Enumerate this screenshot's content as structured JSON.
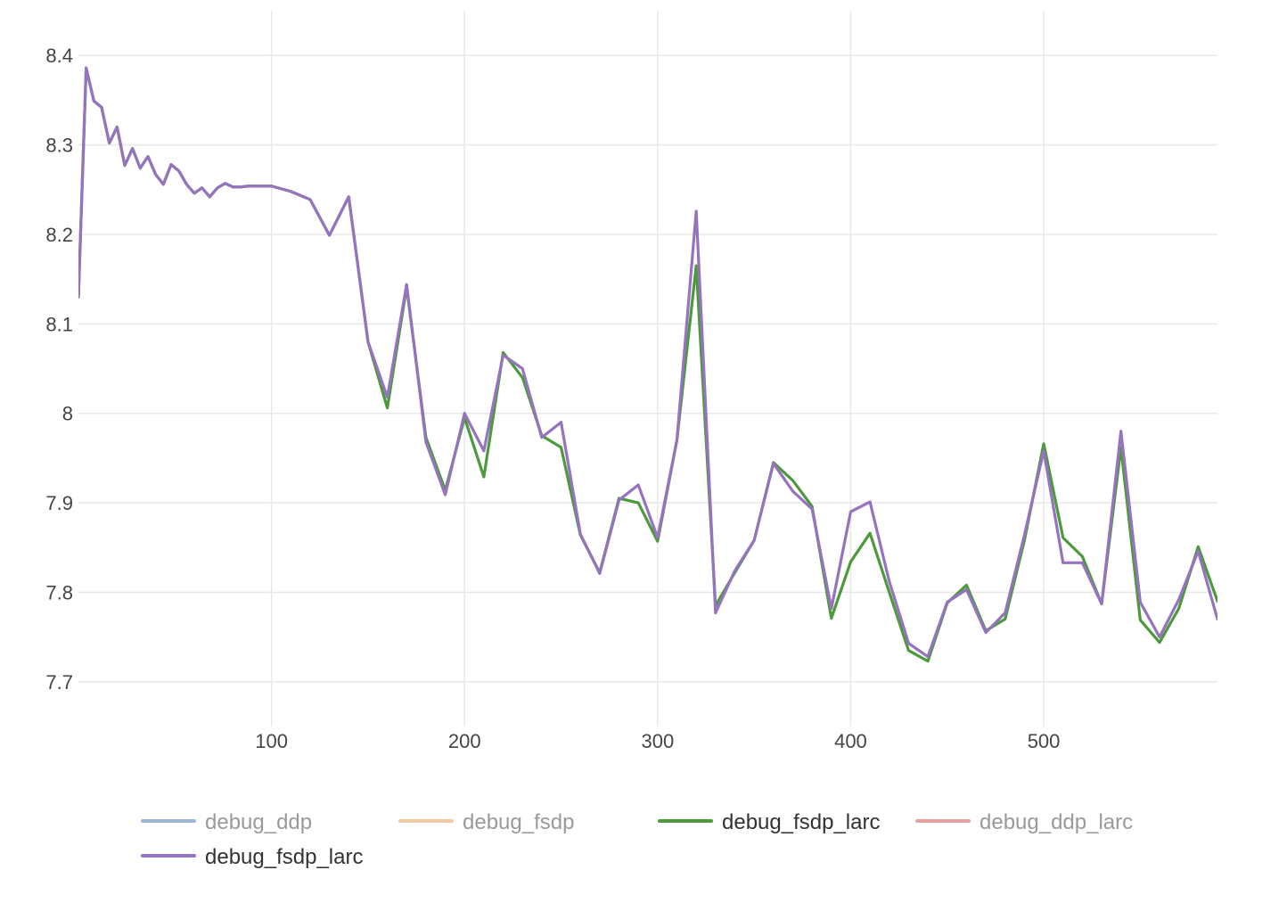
{
  "chart_data": {
    "type": "line",
    "title": "",
    "xlabel": "",
    "ylabel": "",
    "xlim": [
      0,
      590
    ],
    "ylim": [
      7.65,
      8.45
    ],
    "x_ticks": [
      100,
      200,
      300,
      400,
      500
    ],
    "x_tick_labels": [
      "100",
      "200",
      "300",
      "400",
      "500"
    ],
    "y_ticks": [
      7.7,
      7.8,
      7.9,
      8.0,
      8.1,
      8.2,
      8.3,
      8.4
    ],
    "y_tick_labels": [
      "7.7",
      "7.8",
      "7.9",
      "8",
      "8.1",
      "8.2",
      "8.3",
      "8.4"
    ],
    "grid": true,
    "legend_position": "bottom",
    "series": [
      {
        "name": "debug_ddp",
        "color": "#9ab7d6",
        "visible": false,
        "x": [],
        "y": []
      },
      {
        "name": "debug_fsdp",
        "color": "#f3c9a2",
        "visible": false,
        "x": [],
        "y": []
      },
      {
        "name": "debug_fsdp_larc",
        "color": "#4c9a3c",
        "visible": true,
        "x": [
          0,
          4,
          8,
          12,
          16,
          20,
          24,
          28,
          32,
          36,
          40,
          44,
          48,
          52,
          56,
          60,
          64,
          68,
          72,
          76,
          80,
          84,
          88,
          92,
          96,
          100,
          110,
          120,
          130,
          140,
          150,
          160,
          170,
          180,
          190,
          200,
          210,
          220,
          230,
          240,
          250,
          260,
          270,
          280,
          290,
          300,
          310,
          320,
          330,
          340,
          350,
          360,
          370,
          380,
          390,
          400,
          410,
          420,
          430,
          440,
          450,
          460,
          470,
          480,
          490,
          500,
          510,
          520,
          530,
          540,
          550,
          560,
          570,
          580,
          590
        ],
        "y": [
          8.13,
          8.386,
          8.349,
          8.342,
          8.302,
          8.32,
          8.277,
          8.296,
          8.274,
          8.287,
          8.267,
          8.256,
          8.278,
          8.271,
          8.256,
          8.246,
          8.252,
          8.242,
          8.252,
          8.257,
          8.253,
          8.253,
          8.254,
          8.254,
          8.254,
          8.254,
          8.248,
          8.239,
          8.199,
          8.242,
          8.08,
          8.006,
          8.141,
          7.973,
          7.914,
          7.995,
          7.929,
          8.068,
          8.04,
          7.975,
          7.962,
          7.864,
          7.822,
          7.905,
          7.9,
          7.857,
          7.97,
          8.165,
          7.785,
          7.822,
          7.858,
          7.945,
          7.925,
          7.896,
          7.771,
          7.834,
          7.866,
          7.8,
          7.735,
          7.723,
          7.788,
          7.808,
          7.757,
          7.77,
          7.858,
          7.966,
          7.861,
          7.84,
          7.787,
          7.962,
          7.769,
          7.744,
          7.782,
          7.851,
          7.79
        ]
      },
      {
        "name": "debug_ddp_larc",
        "color": "#e6a0a0",
        "visible": false,
        "x": [],
        "y": []
      },
      {
        "name": "debug_fsdp_larc",
        "color": "#9573bf",
        "visible": true,
        "x": [
          0,
          4,
          8,
          12,
          16,
          20,
          24,
          28,
          32,
          36,
          40,
          44,
          48,
          52,
          56,
          60,
          64,
          68,
          72,
          76,
          80,
          84,
          88,
          92,
          96,
          100,
          110,
          120,
          130,
          140,
          150,
          160,
          170,
          180,
          190,
          200,
          210,
          220,
          230,
          240,
          250,
          260,
          270,
          280,
          290,
          300,
          310,
          320,
          330,
          340,
          350,
          360,
          370,
          380,
          390,
          400,
          410,
          420,
          430,
          440,
          450,
          460,
          470,
          480,
          490,
          500,
          510,
          520,
          530,
          540,
          550,
          560,
          570,
          580,
          590
        ],
        "y": [
          8.13,
          8.386,
          8.349,
          8.342,
          8.302,
          8.32,
          8.277,
          8.296,
          8.274,
          8.287,
          8.267,
          8.256,
          8.278,
          8.271,
          8.256,
          8.246,
          8.252,
          8.242,
          8.252,
          8.257,
          8.253,
          8.253,
          8.254,
          8.254,
          8.254,
          8.254,
          8.248,
          8.239,
          8.199,
          8.242,
          8.08,
          8.018,
          8.144,
          7.968,
          7.909,
          8.0,
          7.958,
          8.065,
          8.05,
          7.973,
          7.99,
          7.865,
          7.821,
          7.903,
          7.92,
          7.861,
          7.97,
          8.226,
          7.777,
          7.824,
          7.858,
          7.944,
          7.913,
          7.893,
          7.782,
          7.89,
          7.901,
          7.812,
          7.743,
          7.728,
          7.789,
          7.803,
          7.755,
          7.777,
          7.864,
          7.958,
          7.833,
          7.833,
          7.787,
          7.98,
          7.789,
          7.75,
          7.792,
          7.846,
          7.77
        ]
      }
    ]
  }
}
